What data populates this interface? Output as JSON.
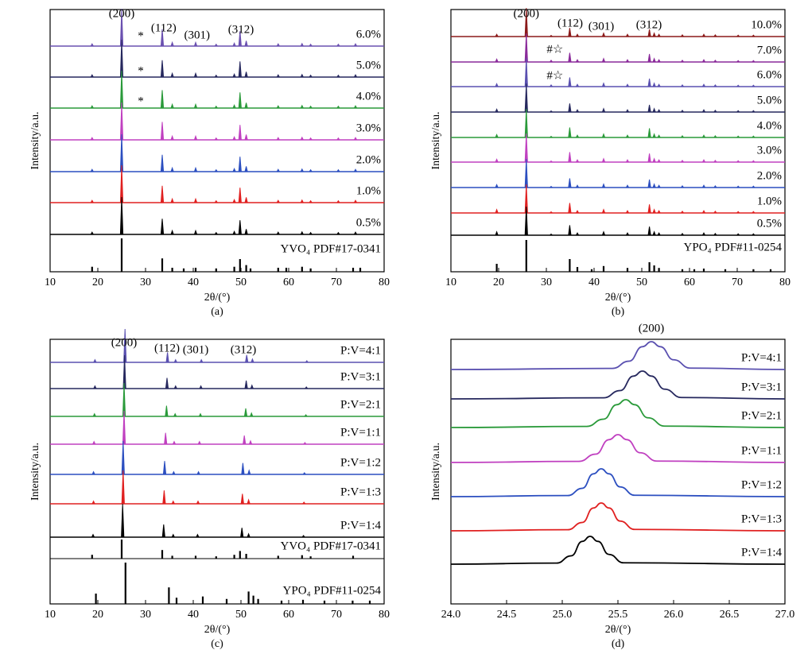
{
  "chart_data": [
    {
      "type": "xrd",
      "panel_label": "(a)",
      "x_label": "2θ/(°)",
      "y_label": "Intensity/a.u.",
      "xlim": [
        10,
        80
      ],
      "xticks": [
        10,
        20,
        30,
        40,
        50,
        60,
        70,
        80
      ],
      "annotations": [
        "(200)",
        "(112)",
        "(301)",
        "(312)",
        "*",
        "*",
        "*"
      ],
      "x": [
        18.8,
        25.0,
        33.5,
        35.6,
        40.5,
        44.8,
        48.6,
        49.8,
        51.1,
        57.8,
        62.8,
        64.6,
        70.4,
        74.0
      ],
      "series": [
        {
          "name": "6.0%",
          "color": "#6a50b0",
          "values": [
            6,
            100,
            45,
            10,
            10,
            5,
            8,
            40,
            14,
            6,
            7,
            5,
            5,
            6
          ]
        },
        {
          "name": "5.0%",
          "color": "#26285e",
          "values": [
            6,
            100,
            45,
            10,
            10,
            5,
            8,
            42,
            14,
            6,
            7,
            5,
            5,
            6
          ]
        },
        {
          "name": "4.0%",
          "color": "#2a9a3a",
          "values": [
            6,
            100,
            48,
            10,
            10,
            5,
            8,
            42,
            14,
            6,
            7,
            5,
            5,
            6
          ]
        },
        {
          "name": "3.0%",
          "color": "#c040c0",
          "values": [
            6,
            100,
            48,
            10,
            10,
            5,
            8,
            40,
            14,
            6,
            7,
            5,
            5,
            6
          ]
        },
        {
          "name": "2.0%",
          "color": "#2c4fc0",
          "values": [
            6,
            100,
            45,
            10,
            10,
            5,
            8,
            40,
            14,
            6,
            7,
            5,
            5,
            6
          ]
        },
        {
          "name": "1.0%",
          "color": "#e02020",
          "values": [
            6,
            100,
            45,
            10,
            10,
            5,
            8,
            40,
            14,
            6,
            7,
            5,
            5,
            6
          ]
        },
        {
          "name": "0.5%",
          "color": "#000000",
          "values": [
            6,
            100,
            42,
            10,
            10,
            5,
            8,
            38,
            14,
            6,
            7,
            5,
            5,
            6
          ]
        }
      ],
      "references": [
        {
          "name": "YVO₄ PDF#17-0341",
          "color": "#000000",
          "x": [
            18.8,
            25.0,
            33.5,
            35.6,
            38.0,
            40.5,
            44.8,
            48.6,
            49.8,
            51.1,
            52.0,
            57.8,
            59.5,
            62.8,
            64.6,
            73.5,
            75.0
          ],
          "values": [
            15,
            100,
            40,
            12,
            10,
            12,
            10,
            15,
            38,
            20,
            10,
            12,
            12,
            15,
            10,
            12,
            12
          ]
        }
      ]
    },
    {
      "type": "xrd",
      "panel_label": "(b)",
      "x_label": "2θ/(°)",
      "y_label": "Intensity/a.u.",
      "xlim": [
        10,
        80
      ],
      "xticks": [
        10,
        20,
        30,
        40,
        50,
        60,
        70,
        80
      ],
      "annotations": [
        "(200)",
        "(112)",
        "(301)",
        "(312)",
        "#☆",
        "#☆"
      ],
      "x": [
        19.6,
        25.8,
        31.0,
        34.9,
        36.5,
        42.0,
        47.0,
        51.6,
        52.6,
        53.6,
        58.5,
        63.0,
        65.4,
        70.2,
        73.4
      ],
      "series": [
        {
          "name": "10.0%",
          "color": "#8b1a1a",
          "values": [
            8,
            100,
            4,
            30,
            8,
            12,
            8,
            25,
            12,
            8,
            6,
            8,
            6,
            5,
            5
          ]
        },
        {
          "name": "7.0%",
          "color": "#8a2a9a",
          "values": [
            10,
            100,
            6,
            32,
            8,
            12,
            8,
            28,
            12,
            8,
            6,
            8,
            6,
            5,
            5
          ]
        },
        {
          "name": "6.0%",
          "color": "#5a50b0",
          "values": [
            10,
            100,
            6,
            32,
            8,
            12,
            8,
            28,
            12,
            8,
            6,
            8,
            6,
            5,
            5
          ]
        },
        {
          "name": "5.0%",
          "color": "#26285e",
          "values": [
            10,
            100,
            4,
            30,
            8,
            12,
            8,
            25,
            12,
            8,
            6,
            8,
            6,
            5,
            5
          ]
        },
        {
          "name": "4.0%",
          "color": "#2a9a3a",
          "values": [
            10,
            100,
            4,
            35,
            8,
            12,
            8,
            32,
            12,
            8,
            6,
            8,
            6,
            5,
            5
          ]
        },
        {
          "name": "3.0%",
          "color": "#c040c0",
          "values": [
            10,
            100,
            4,
            35,
            8,
            12,
            8,
            30,
            12,
            8,
            6,
            8,
            6,
            5,
            5
          ]
        },
        {
          "name": "2.0%",
          "color": "#2c4fc0",
          "values": [
            10,
            100,
            4,
            32,
            8,
            12,
            8,
            28,
            12,
            8,
            6,
            8,
            6,
            5,
            5
          ]
        },
        {
          "name": "1.0%",
          "color": "#e02020",
          "values": [
            12,
            100,
            4,
            35,
            8,
            12,
            8,
            30,
            12,
            8,
            6,
            8,
            6,
            5,
            5
          ]
        },
        {
          "name": "0.5%",
          "color": "#000000",
          "values": [
            12,
            100,
            4,
            35,
            8,
            12,
            8,
            30,
            12,
            8,
            6,
            8,
            6,
            5,
            5
          ]
        }
      ],
      "references": [
        {
          "name": "YPO₄ PDF#11-0254",
          "color": "#000000",
          "x": [
            19.6,
            25.8,
            34.9,
            36.5,
            39.5,
            42.0,
            47.0,
            51.6,
            52.6,
            53.6,
            58.5,
            61.0,
            63.0,
            67.5,
            73.4,
            77.0
          ],
          "values": [
            25,
            100,
            40,
            15,
            8,
            18,
            12,
            30,
            20,
            12,
            8,
            8,
            10,
            8,
            8,
            8
          ]
        }
      ]
    },
    {
      "type": "xrd",
      "panel_label": "(c)",
      "x_label": "2θ/(°)",
      "y_label": "Intensity/a.u.",
      "xlim": [
        10,
        80
      ],
      "xticks": [
        10,
        20,
        30,
        40,
        50,
        60,
        70,
        80
      ],
      "annotations": [
        "(200)",
        "(112)",
        "(301)",
        "(312)"
      ],
      "series": [
        {
          "name": "P:V=4:1",
          "color": "#5a50b0",
          "x": [
            19.4,
            25.7,
            34.6,
            36.3,
            41.7,
            51.2,
            52.4,
            63.8
          ],
          "values": [
            8,
            100,
            30,
            8,
            8,
            22,
            10,
            5
          ]
        },
        {
          "name": "P:V=3:1",
          "color": "#26285e",
          "x": [
            19.4,
            25.6,
            34.5,
            36.3,
            41.6,
            51.1,
            52.3,
            63.7
          ],
          "values": [
            8,
            100,
            32,
            8,
            8,
            24,
            10,
            5
          ]
        },
        {
          "name": "P:V=2:1",
          "color": "#2a9a3a",
          "x": [
            19.3,
            25.5,
            34.4,
            36.2,
            41.5,
            51.0,
            52.2,
            63.6
          ],
          "values": [
            8,
            100,
            32,
            8,
            8,
            24,
            10,
            5
          ]
        },
        {
          "name": "P:V=1:1",
          "color": "#c040c0",
          "x": [
            19.2,
            25.5,
            34.2,
            36.0,
            41.3,
            50.7,
            52.0,
            63.4
          ],
          "values": [
            8,
            100,
            34,
            8,
            8,
            26,
            10,
            5
          ]
        },
        {
          "name": "P:V=1:2",
          "color": "#2c4fc0",
          "x": [
            19.1,
            25.3,
            34.0,
            35.9,
            41.1,
            50.4,
            51.7,
            63.3
          ],
          "values": [
            8,
            100,
            40,
            8,
            8,
            34,
            12,
            5
          ]
        },
        {
          "name": "P:V=1:3",
          "color": "#e02020",
          "x": [
            19.1,
            25.3,
            33.9,
            35.8,
            41.0,
            50.3,
            51.6,
            63.2
          ],
          "values": [
            8,
            100,
            40,
            8,
            8,
            30,
            12,
            5
          ]
        },
        {
          "name": "P:V=1:4",
          "color": "#000000",
          "x": [
            19.0,
            25.2,
            33.8,
            35.8,
            40.9,
            50.2,
            51.6,
            63.1
          ],
          "values": [
            8,
            100,
            38,
            8,
            8,
            28,
            10,
            5
          ]
        }
      ],
      "references": [
        {
          "name": "YVO₄ PDF#17-0341",
          "color": "#000000",
          "x": [
            18.8,
            25.0,
            33.5,
            35.6,
            40.5,
            44.8,
            48.6,
            49.8,
            51.1,
            57.8,
            62.8,
            64.6,
            73.5
          ],
          "values": [
            20,
            100,
            45,
            15,
            15,
            12,
            20,
            40,
            25,
            15,
            18,
            12,
            15
          ]
        },
        {
          "name": "YPO₄ PDF#11-0254",
          "color": "#000000",
          "x": [
            19.6,
            25.8,
            34.9,
            36.5,
            42.0,
            47.0,
            51.6,
            52.6,
            53.6,
            58.5,
            63.0,
            67.5,
            73.4,
            77.0
          ],
          "values": [
            25,
            100,
            40,
            15,
            18,
            12,
            30,
            20,
            12,
            8,
            10,
            8,
            8,
            8
          ]
        }
      ]
    },
    {
      "type": "line",
      "panel_label": "(d)",
      "x_label": "2θ/(°)",
      "y_label": "Intensity/a.u.",
      "xlim": [
        24,
        27
      ],
      "xticks": [
        {
          "value": 24,
          "label": "24.0"
        },
        {
          "value": 24.5,
          "label": "24.5"
        },
        {
          "value": 25,
          "label": "25.0"
        },
        {
          "value": 25.5,
          "label": "25.5"
        },
        {
          "value": 26,
          "label": "26.0"
        },
        {
          "value": 26.5,
          "label": "26.5"
        },
        {
          "value": 27,
          "label": "27.0"
        }
      ],
      "annotations": [
        "(200)"
      ],
      "series": [
        {
          "name": "P:V=4:1",
          "color": "#5a50b0",
          "x": [
            24,
            25.45,
            25.6,
            25.72,
            25.8,
            25.88,
            26.0,
            26.15,
            27
          ],
          "values": [
            0,
            4,
            30,
            82,
            100,
            82,
            35,
            5,
            0
          ]
        },
        {
          "name": "P:V=3:1",
          "color": "#26285e",
          "x": [
            24,
            25.37,
            25.52,
            25.64,
            25.72,
            25.8,
            25.92,
            26.07,
            27
          ],
          "values": [
            0,
            4,
            30,
            82,
            100,
            82,
            35,
            5,
            0
          ]
        },
        {
          "name": "P:V=2:1",
          "color": "#2a9a3a",
          "x": [
            24,
            25.22,
            25.37,
            25.49,
            25.57,
            25.65,
            25.77,
            25.92,
            27
          ],
          "values": [
            0,
            4,
            30,
            82,
            100,
            82,
            35,
            5,
            0
          ]
        },
        {
          "name": "P:V=1:1",
          "color": "#c040c0",
          "x": [
            24,
            25.15,
            25.3,
            25.42,
            25.5,
            25.58,
            25.7,
            25.85,
            27
          ],
          "values": [
            0,
            4,
            30,
            82,
            100,
            82,
            35,
            5,
            0
          ]
        },
        {
          "name": "P:V=1:2",
          "color": "#2c4fc0",
          "x": [
            24,
            25.05,
            25.18,
            25.28,
            25.35,
            25.42,
            25.52,
            25.65,
            27
          ],
          "values": [
            0,
            4,
            30,
            82,
            100,
            82,
            35,
            5,
            0
          ]
        },
        {
          "name": "P:V=1:3",
          "color": "#e02020",
          "x": [
            24,
            25.05,
            25.18,
            25.28,
            25.35,
            25.42,
            25.52,
            25.65,
            27
          ],
          "values": [
            0,
            4,
            30,
            82,
            100,
            82,
            35,
            5,
            0
          ]
        },
        {
          "name": "P:V=1:4",
          "color": "#000000",
          "x": [
            24,
            24.95,
            25.08,
            25.18,
            25.25,
            25.32,
            25.42,
            25.55,
            27
          ],
          "values": [
            0,
            4,
            30,
            82,
            100,
            82,
            35,
            5,
            0
          ]
        }
      ]
    }
  ]
}
